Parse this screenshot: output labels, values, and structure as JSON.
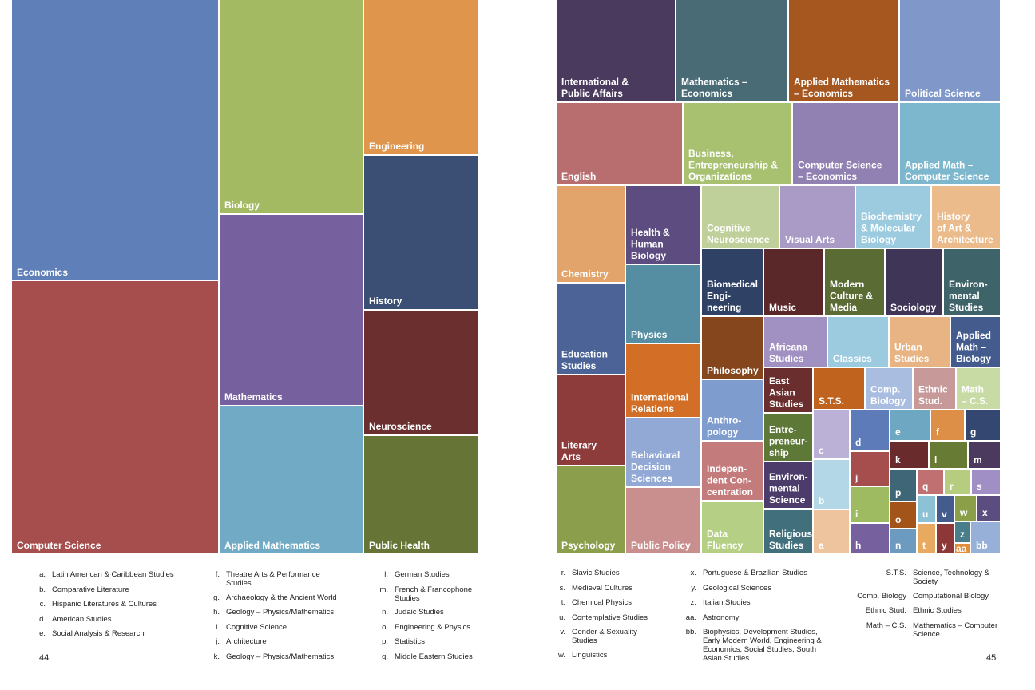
{
  "chart_data": {
    "type": "treemap",
    "note_spread": "two-page treemap spread",
    "left_page_tiles": [
      {
        "key": "econ",
        "label": "Economics",
        "color": "#5f7fb8"
      },
      {
        "key": "cs",
        "label": "Computer Science",
        "color": "#a64d4d"
      },
      {
        "key": "bio",
        "label": "Biology",
        "color": "#a3b962"
      },
      {
        "key": "math",
        "label": "Mathematics",
        "color": "#76619e"
      },
      {
        "key": "am",
        "label": "Applied Mathematics",
        "color": "#70aac4"
      },
      {
        "key": "eng",
        "label": "Engineering",
        "color": "#df954b"
      },
      {
        "key": "hist",
        "label": "History",
        "color": "#3b4e74"
      },
      {
        "key": "neuro",
        "label": "Neuroscience",
        "color": "#6b2f2f"
      },
      {
        "key": "ph",
        "label": "Public Health",
        "color": "#667536"
      }
    ],
    "right_page_tiles": [
      {
        "key": "ipa",
        "label": "International & Public Affairs",
        "color": "#4a3b5e"
      },
      {
        "key": "mecon",
        "label": "Mathematics – Economics",
        "color": "#486b76"
      },
      {
        "key": "amecon",
        "label": "Applied Mathematics – Economics",
        "color": "#a6561f"
      },
      {
        "key": "pols",
        "label": "Political Science",
        "color": "#7f98c9"
      },
      {
        "key": "engl",
        "label": "English",
        "color": "#b86e6e"
      },
      {
        "key": "beo",
        "label": "Business, Entrepreneurship & Organizations",
        "color": "#a8c170"
      },
      {
        "key": "csecon",
        "label": "Computer Science – Economics",
        "color": "#9181b3"
      },
      {
        "key": "amcs",
        "label": "Applied Math – Computer Science",
        "color": "#7db7cd"
      },
      {
        "key": "chem",
        "label": "Chemistry",
        "color": "#e2a46a"
      },
      {
        "key": "hhb",
        "label": "Health & Human Biology",
        "color": "#5c4c80"
      },
      {
        "key": "cogneuro",
        "label": "Cognitive Neuroscience",
        "color": "#c0d09a"
      },
      {
        "key": "visarts",
        "label": "Visual Arts",
        "color": "#a99ac6"
      },
      {
        "key": "bmb",
        "label": "Biochemistry & Molecular Biology",
        "color": "#9ccbe0"
      },
      {
        "key": "haa",
        "label": "History of Art & Architecture",
        "color": "#ebbb8b"
      },
      {
        "key": "edu",
        "label": "Education Studies",
        "color": "#4b6396"
      },
      {
        "key": "phys",
        "label": "Physics",
        "color": "#558ea3"
      },
      {
        "key": "bme",
        "label": "Biomedical Engi- neering",
        "color": "#2f4266"
      },
      {
        "key": "music",
        "label": "Music",
        "color": "#5a2828"
      },
      {
        "key": "mcm",
        "label": "Modern Culture & Media",
        "color": "#5a6b33"
      },
      {
        "key": "soc",
        "label": "Sociology",
        "color": "#3f3556"
      },
      {
        "key": "envs",
        "label": "Environ- mental Studies",
        "color": "#3e6369"
      },
      {
        "key": "phil",
        "label": "Philosophy",
        "color": "#86461d"
      },
      {
        "key": "afri",
        "label": "Africana Studies",
        "color": "#a191c2"
      },
      {
        "key": "classics",
        "label": "Classics",
        "color": "#9ccbe0"
      },
      {
        "key": "urban",
        "label": "Urban Studies",
        "color": "#e9b483"
      },
      {
        "key": "ambio",
        "label": "Applied Math – Biology",
        "color": "#445b8d"
      },
      {
        "key": "lit",
        "label": "Literary Arts",
        "color": "#8d3b3b"
      },
      {
        "key": "ir",
        "label": "International Relations",
        "color": "#d26e25"
      },
      {
        "key": "anth",
        "label": "Anthro- pology",
        "color": "#7f9ccf"
      },
      {
        "key": "eas",
        "label": "East Asian Studies",
        "color": "#6a2e2e"
      },
      {
        "key": "sts",
        "label": "S.T.S.",
        "color": "#c0631f"
      },
      {
        "key": "compbio",
        "label": "Comp. Biology",
        "color": "#a9bde0"
      },
      {
        "key": "ethstud",
        "label": "Ethnic Stud.",
        "color": "#c79999"
      },
      {
        "key": "mathcs",
        "label": "Math – C.S.",
        "color": "#c9dba5"
      },
      {
        "key": "bds",
        "label": "Behavioral Decision Sciences",
        "color": "#92a9d5"
      },
      {
        "key": "entre",
        "label": "Entre- preneur- ship",
        "color": "#5d7837"
      },
      {
        "key": "indep",
        "label": "Indepen- dent Con- centration",
        "color": "#c47b7b"
      },
      {
        "key": "envsci",
        "label": "Environ- mental Science",
        "color": "#4b3c6b"
      },
      {
        "key": "psych",
        "label": "Psychology",
        "color": "#8a9e4b"
      },
      {
        "key": "pubpol",
        "label": "Public Policy",
        "color": "#c98f8f"
      },
      {
        "key": "datafl",
        "label": "Data Fluency",
        "color": "#b5cf84"
      },
      {
        "key": "relig",
        "label": "Religious Studies",
        "color": "#41707c"
      },
      {
        "key": "a",
        "label": "a",
        "color": "#eec49f"
      },
      {
        "key": "b",
        "label": "b",
        "color": "#b3d7e6"
      },
      {
        "key": "c",
        "label": "c",
        "color": "#bbb1d6"
      },
      {
        "key": "d",
        "label": "d",
        "color": "#5d7bb9"
      },
      {
        "key": "e",
        "label": "e",
        "color": "#6ea7c2"
      },
      {
        "key": "f",
        "label": "f",
        "color": "#de8f47"
      },
      {
        "key": "g",
        "label": "g",
        "color": "#344770"
      },
      {
        "key": "h",
        "label": "h",
        "color": "#76619e"
      },
      {
        "key": "i",
        "label": "i",
        "color": "#9fbb62"
      },
      {
        "key": "j",
        "label": "j",
        "color": "#a64d4d"
      },
      {
        "key": "k",
        "label": "k",
        "color": "#692b2b"
      },
      {
        "key": "l",
        "label": "l",
        "color": "#687b34"
      },
      {
        "key": "m",
        "label": "m",
        "color": "#4b3a5e"
      },
      {
        "key": "n",
        "label": "n",
        "color": "#6d9bc0"
      },
      {
        "key": "o",
        "label": "o",
        "color": "#a35519"
      },
      {
        "key": "p",
        "label": "p",
        "color": "#3e6676"
      },
      {
        "key": "q",
        "label": "q",
        "color": "#c07070"
      },
      {
        "key": "r",
        "label": "r",
        "color": "#b6cc7f"
      },
      {
        "key": "s",
        "label": "s",
        "color": "#9f8fc5"
      },
      {
        "key": "t",
        "label": "t",
        "color": "#e8a961"
      },
      {
        "key": "u",
        "label": "u",
        "color": "#8dc2d6"
      },
      {
        "key": "v",
        "label": "v",
        "color": "#445b8d"
      },
      {
        "key": "w",
        "label": "w",
        "color": "#8b9f48"
      },
      {
        "key": "x",
        "label": "x",
        "color": "#5c4d81"
      },
      {
        "key": "y",
        "label": "y",
        "color": "#8d3737"
      },
      {
        "key": "z",
        "label": "z",
        "color": "#4a7d8c"
      },
      {
        "key": "aa",
        "label": "aa",
        "color": "#e18d3c"
      },
      {
        "key": "bb",
        "label": "bb",
        "color": "#96b0d8"
      }
    ]
  },
  "legend_left": {
    "col1": [
      {
        "k": "a.",
        "v": "Latin American & Caribbean Studies"
      },
      {
        "k": "b.",
        "v": "Comparative Literature"
      },
      {
        "k": "c.",
        "v": "Hispanic Literatures & Cultures"
      },
      {
        "k": "d.",
        "v": "American Studies"
      },
      {
        "k": "e.",
        "v": "Social Analysis & Research"
      }
    ],
    "col2": [
      {
        "k": "f.",
        "v": "Theatre Arts & Performance Studies"
      },
      {
        "k": "g.",
        "v": "Archaeology & the Ancient World"
      },
      {
        "k": "h.",
        "v": "Geology – Physics/Mathematics"
      },
      {
        "k": "i.",
        "v": "Cognitive Science"
      },
      {
        "k": "j.",
        "v": "Architecture"
      },
      {
        "k": "k.",
        "v": "Geology – Physics/Mathematics"
      }
    ],
    "col3": [
      {
        "k": "l.",
        "v": "German Studies"
      },
      {
        "k": "m.",
        "v": "French & Francophone Studies"
      },
      {
        "k": "n.",
        "v": "Judaic Studies"
      },
      {
        "k": "o.",
        "v": "Engineering & Physics"
      },
      {
        "k": "p.",
        "v": "Statistics"
      },
      {
        "k": "q.",
        "v": "Middle Eastern Studies"
      }
    ]
  },
  "legend_right": {
    "col1": [
      {
        "k": "r.",
        "v": "Slavic Studies"
      },
      {
        "k": "s.",
        "v": "Medieval Cultures"
      },
      {
        "k": "t.",
        "v": "Chemical Physics"
      },
      {
        "k": "u.",
        "v": "Contemplative Studies"
      },
      {
        "k": "v.",
        "v": "Gender & Sexuality Studies"
      },
      {
        "k": "w.",
        "v": "Linguistics"
      }
    ],
    "col2": [
      {
        "k": "x.",
        "v": "Portuguese & Brazilian Studies"
      },
      {
        "k": "y.",
        "v": "Geological Sciences"
      },
      {
        "k": "z.",
        "v": "Italian Studies"
      },
      {
        "k": "aa.",
        "v": "Astronomy"
      },
      {
        "k": "bb.",
        "v": "Biophysics, Development Studies, Early Modern World, Engineering & Economics, Social Studies, South Asian Studies"
      }
    ],
    "col3": [
      {
        "k": "S.T.S.",
        "v": "Science, Technology & Society"
      },
      {
        "k": "Comp. Biology",
        "v": "Computational Biology"
      },
      {
        "k": "Ethnic Stud.",
        "v": "Ethnic Studies"
      },
      {
        "k": "Math – C.S.",
        "v": "Mathematics – Computer Science"
      }
    ]
  },
  "page_left": "44",
  "page_right": "45"
}
